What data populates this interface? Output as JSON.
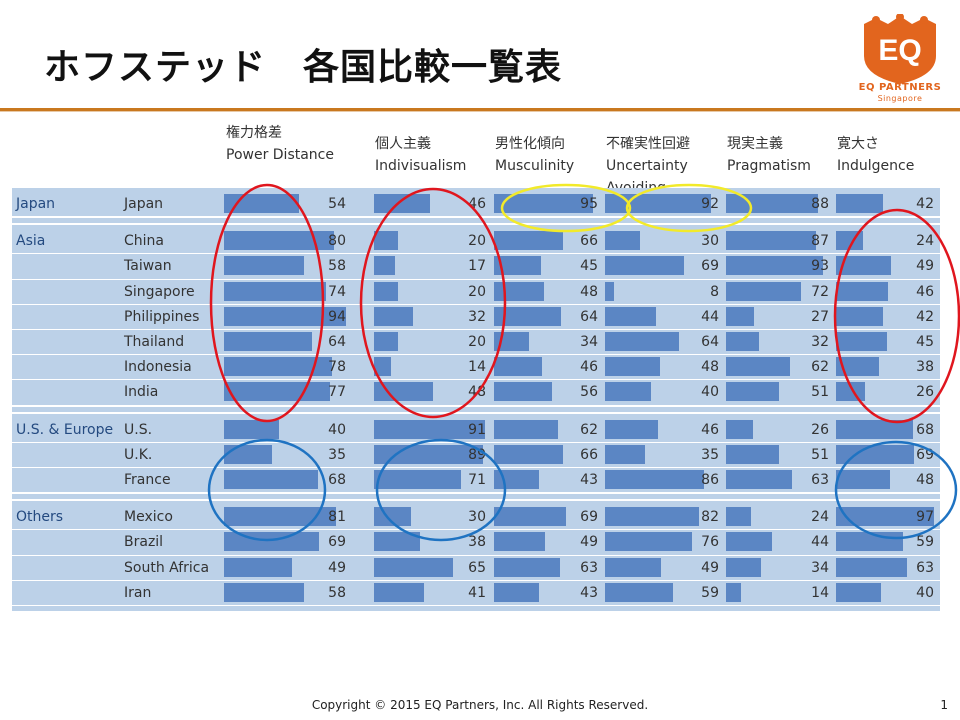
{
  "slide": {
    "title": "ホフステッド　各国比較一覧表",
    "logo_text": "EQ PARTNERS",
    "logo_sub": "Singapore",
    "logo_mark": "EQ",
    "copyright": "Copyright © 2015 EQ Partners, Inc. All Rights Reserved.",
    "page_number": "1",
    "accent_color": "#e2651e",
    "bar_color": "#5b86c4"
  },
  "columns": [
    {
      "ja": "権力格差",
      "en": "Power Distance",
      "en2": ""
    },
    {
      "ja": "個人主義",
      "en": "Indivisualism",
      "en2": ""
    },
    {
      "ja": "男性化傾向",
      "en": "Musculinity",
      "en2": ""
    },
    {
      "ja": "不確実性回避",
      "en": "Uncertainty",
      "en2": "Avoiding"
    },
    {
      "ja": "現実主義",
      "en": "Pragmatism",
      "en2": ""
    },
    {
      "ja": "寛大さ",
      "en": "Indulgence",
      "en2": ""
    }
  ],
  "groups": [
    {
      "region": "Japan",
      "rows": [
        {
          "country": "Japan",
          "values": [
            54,
            46,
            95,
            92,
            88,
            42
          ]
        }
      ]
    },
    {
      "region": "Asia",
      "rows": [
        {
          "country": "China",
          "values": [
            80,
            20,
            66,
            30,
            87,
            24
          ]
        },
        {
          "country": "Taiwan",
          "values": [
            58,
            17,
            45,
            69,
            93,
            49
          ]
        },
        {
          "country": "Singapore",
          "values": [
            74,
            20,
            48,
            8,
            72,
            46
          ]
        },
        {
          "country": "Philippines",
          "values": [
            94,
            32,
            64,
            44,
            27,
            42
          ]
        },
        {
          "country": "Thailand",
          "values": [
            64,
            20,
            34,
            64,
            32,
            45
          ]
        },
        {
          "country": "Indonesia",
          "values": [
            78,
            14,
            46,
            48,
            62,
            38
          ]
        },
        {
          "country": "India",
          "values": [
            77,
            48,
            56,
            40,
            51,
            26
          ]
        }
      ]
    },
    {
      "region": "U.S. & Europe",
      "rows": [
        {
          "country": "U.S.",
          "values": [
            40,
            91,
            62,
            46,
            26,
            68
          ]
        },
        {
          "country": "U.K.",
          "values": [
            35,
            89,
            66,
            35,
            51,
            69
          ]
        },
        {
          "country": "France",
          "values": [
            68,
            71,
            43,
            86,
            63,
            48
          ]
        }
      ]
    },
    {
      "region": "Others",
      "rows": [
        {
          "country": "Mexico",
          "values": [
            81,
            30,
            69,
            82,
            24,
            97
          ]
        },
        {
          "country": "Brazil",
          "values": [
            69,
            38,
            49,
            76,
            44,
            59
          ]
        },
        {
          "country": "South Africa",
          "values": [
            49,
            65,
            63,
            49,
            34,
            63
          ]
        },
        {
          "country": "Iran",
          "values": [
            58,
            41,
            43,
            59,
            14,
            40
          ]
        }
      ]
    }
  ],
  "annotations": [
    {
      "color": "#e0161e",
      "shape": "ellipse",
      "around": "Power Distance / Asia"
    },
    {
      "color": "#e0161e",
      "shape": "ellipse",
      "around": "Indivisualism / Asia"
    },
    {
      "color": "#e0161e",
      "shape": "ellipse",
      "around": "Indulgence / Asia"
    },
    {
      "color": "#f2ea2a",
      "shape": "ellipse",
      "around": "Musculinity / Japan"
    },
    {
      "color": "#f2ea2a",
      "shape": "ellipse",
      "around": "Uncertainty Avoiding / Japan"
    },
    {
      "color": "#1f73c2",
      "shape": "ellipse",
      "around": "Power Distance / U.S. & Europe"
    },
    {
      "color": "#1f73c2",
      "shape": "ellipse",
      "around": "Indivisualism / U.S. & Europe"
    },
    {
      "color": "#1f73c2",
      "shape": "ellipse",
      "around": "Indulgence / U.S. & Europe"
    }
  ]
}
